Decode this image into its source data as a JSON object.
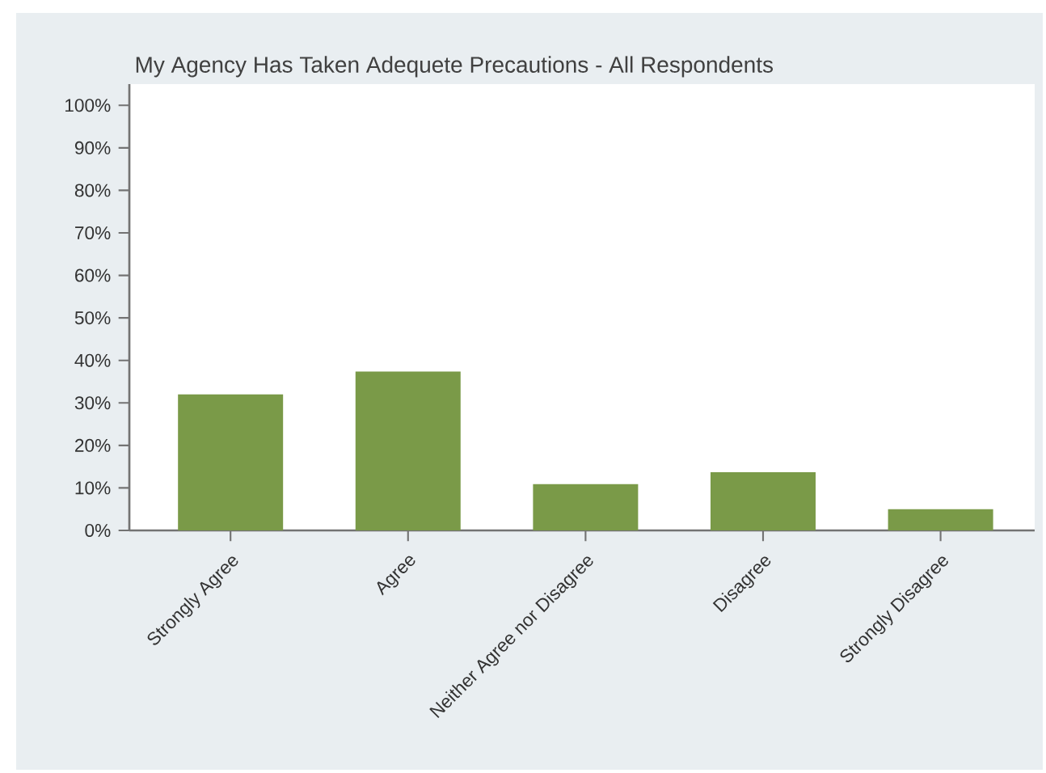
{
  "chart_data": {
    "type": "bar",
    "title": "My Agency Has Taken Adequete Precautions - All Respondents",
    "categories": [
      "Strongly Agree",
      "Agree",
      "Neither Agree nor Disagree",
      "Disagree",
      "Strongly Disagree"
    ],
    "values": [
      32,
      37.4,
      10.9,
      13.7,
      5.0
    ],
    "color": "#7a9a48",
    "ylim": [
      0,
      105
    ],
    "yticks": [
      {
        "value": 0,
        "label": "0%"
      },
      {
        "value": 10,
        "label": "10%"
      },
      {
        "value": 20,
        "label": "20%"
      },
      {
        "value": 30,
        "label": "30%"
      },
      {
        "value": 40,
        "label": "40%"
      },
      {
        "value": 50,
        "label": "50%"
      },
      {
        "value": 60,
        "label": "60%"
      },
      {
        "value": 70,
        "label": "70%"
      },
      {
        "value": 80,
        "label": "80%"
      },
      {
        "value": 90,
        "label": "90%"
      },
      {
        "value": 100,
        "label": "100%"
      }
    ]
  }
}
